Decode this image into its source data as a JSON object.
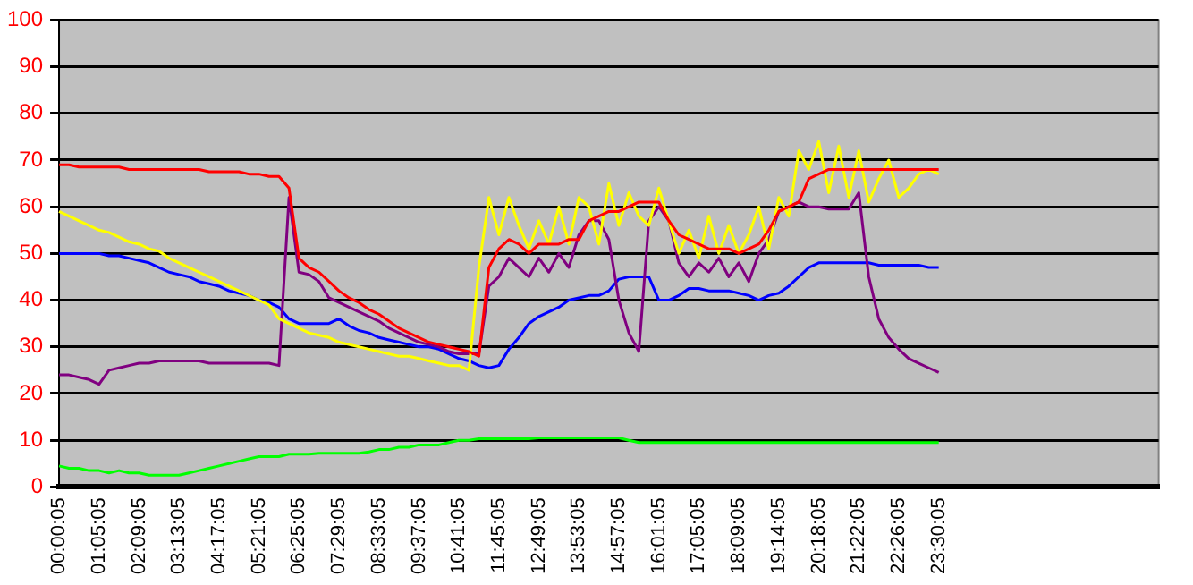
{
  "chart_data": {
    "type": "line",
    "categories": [
      "00:00:05",
      null,
      null,
      null,
      "01:05:05",
      null,
      null,
      null,
      "02:09:05",
      null,
      null,
      null,
      "03:13:05",
      null,
      null,
      null,
      "04:17:05",
      null,
      null,
      null,
      "05:21:05",
      null,
      null,
      null,
      "06:25:05",
      null,
      null,
      null,
      "07:29:05",
      null,
      null,
      null,
      "08:33:05",
      null,
      null,
      null,
      "09:37:05",
      null,
      null,
      null,
      "10:41:05",
      null,
      null,
      null,
      "11:45:05",
      null,
      null,
      null,
      "12:49:05",
      null,
      null,
      null,
      "13:53:05",
      null,
      null,
      null,
      "14:57:05",
      null,
      null,
      null,
      "16:01:05",
      null,
      null,
      null,
      "17:05:05",
      null,
      null,
      null,
      "18:09:05",
      null,
      null,
      null,
      "19:14:05",
      null,
      null,
      null,
      "20:18:05",
      null,
      null,
      null,
      "21:22:05",
      null,
      null,
      null,
      "22:26:05",
      null,
      null,
      null,
      "23:30:05",
      null,
      null,
      null,
      null,
      null,
      null,
      null,
      null,
      null,
      null,
      null,
      null,
      null,
      null,
      null,
      null,
      null,
      null,
      null,
      null,
      null,
      null
    ],
    "series": [
      {
        "color": "#ff0000",
        "values": [
          69,
          69,
          68.5,
          68.5,
          68.5,
          68.5,
          68.5,
          68,
          68,
          68,
          68,
          68,
          68,
          68,
          68,
          67.5,
          67.5,
          67.5,
          67.5,
          67,
          67,
          66.5,
          66.5,
          64,
          49,
          47,
          46,
          44,
          42,
          40.5,
          39.5,
          38,
          37,
          35.5,
          34,
          33,
          32,
          31,
          30.5,
          30,
          29.5,
          29,
          28,
          47,
          51,
          53,
          52,
          50,
          52,
          52,
          52,
          53,
          53,
          57,
          58,
          59,
          59,
          60,
          61,
          61,
          61,
          57,
          54,
          53,
          52,
          51,
          51,
          51,
          50,
          51,
          52,
          55,
          59,
          60,
          61,
          66,
          67,
          68,
          68,
          68,
          68,
          68,
          68,
          68,
          68,
          68,
          68,
          68,
          68,
          null,
          null,
          null,
          null,
          null,
          null,
          null,
          null,
          null,
          null,
          null,
          null,
          null,
          null,
          null,
          null,
          null,
          null,
          null,
          null,
          null,
          null
        ]
      },
      {
        "color": "#ffff00",
        "values": [
          59,
          58,
          57,
          56,
          55,
          54.5,
          53.5,
          52.5,
          52,
          51,
          50.5,
          49,
          48,
          47,
          46,
          45,
          44,
          43,
          42,
          41,
          40,
          39,
          36,
          35,
          34,
          33,
          32.5,
          32,
          31,
          30.5,
          30,
          29.5,
          29,
          28.5,
          28,
          28,
          27.5,
          27,
          26.5,
          26,
          26,
          25,
          47,
          62,
          54,
          62,
          56,
          51,
          57,
          52,
          60,
          52,
          62,
          60,
          52,
          65,
          56,
          63,
          58,
          56,
          64,
          57,
          50,
          55,
          49,
          58,
          50,
          56,
          50,
          54,
          60,
          51,
          62,
          58,
          72,
          68,
          74,
          63,
          73,
          62,
          72,
          61,
          66,
          70,
          62,
          64,
          67,
          68,
          67,
          null,
          null,
          null,
          null,
          null,
          null,
          null,
          null,
          null,
          null,
          null,
          null,
          null,
          null,
          null,
          null,
          null,
          null,
          null,
          null,
          null,
          null
        ]
      },
      {
        "color": "#800080",
        "values": [
          24,
          24,
          23.5,
          23,
          22,
          25,
          25.5,
          26,
          26.5,
          26.5,
          27,
          27,
          27,
          27,
          27,
          26.5,
          26.5,
          26.5,
          26.5,
          26.5,
          26.5,
          26.5,
          26,
          62,
          46,
          45.5,
          44,
          40.5,
          39.5,
          38.5,
          37.5,
          36.5,
          35.5,
          34,
          33,
          32,
          31,
          30.5,
          30,
          29,
          28.5,
          28.5,
          28.5,
          43,
          45,
          49,
          47,
          45,
          49,
          46,
          50,
          47,
          54,
          57,
          57,
          53,
          40,
          33,
          29,
          57,
          60,
          57,
          48,
          45,
          48,
          46,
          49,
          45,
          48,
          44,
          50,
          53,
          59,
          60,
          61,
          60,
          60,
          59.5,
          59.5,
          59.5,
          63,
          45,
          36,
          32,
          29.5,
          27.5,
          26.5,
          25.5,
          24.5,
          null,
          null,
          null,
          null,
          null,
          null,
          null,
          null,
          null,
          null,
          null,
          null,
          null,
          null,
          null,
          null,
          null,
          null,
          null,
          null,
          null,
          null
        ]
      },
      {
        "color": "#0000ff",
        "values": [
          50,
          50,
          50,
          50,
          50,
          49.5,
          49.5,
          49,
          48.5,
          48,
          47,
          46,
          45.5,
          45,
          44,
          43.5,
          43,
          42,
          41.5,
          41,
          40,
          39.5,
          38.5,
          36,
          35,
          35,
          35,
          35,
          36,
          34.5,
          33.5,
          33,
          32,
          31.5,
          31,
          30.5,
          30,
          30,
          29.5,
          28.5,
          27.5,
          27,
          26,
          25.5,
          26,
          29.5,
          32,
          35,
          36.5,
          37.5,
          38.5,
          40,
          40.5,
          41,
          41,
          42,
          44.5,
          45,
          45,
          45,
          40,
          40,
          41,
          42.5,
          42.5,
          42,
          42,
          42,
          41.5,
          41,
          40,
          41,
          41.5,
          43,
          45,
          47,
          48,
          48,
          48,
          48,
          48,
          48,
          47.5,
          47.5,
          47.5,
          47.5,
          47.5,
          47,
          47,
          null,
          null,
          null,
          null,
          null,
          null,
          null,
          null,
          null,
          null,
          null,
          null,
          null,
          null,
          null,
          null,
          null,
          null,
          null,
          null,
          null,
          null
        ]
      },
      {
        "color": "#00ff00",
        "values": [
          4.5,
          4,
          4,
          3.5,
          3.5,
          3,
          3.5,
          3,
          3,
          2.5,
          2.5,
          2.5,
          2.5,
          3,
          3.5,
          4,
          4.5,
          5,
          5.5,
          6,
          6.5,
          6.5,
          6.5,
          7,
          7,
          7,
          7.2,
          7.2,
          7.2,
          7.2,
          7.2,
          7.5,
          8,
          8,
          8.5,
          8.5,
          9,
          9,
          9,
          9.5,
          10,
          10,
          10.3,
          10.3,
          10.3,
          10.3,
          10.3,
          10.3,
          10.5,
          10.5,
          10.5,
          10.5,
          10.5,
          10.5,
          10.5,
          10.5,
          10.5,
          10,
          9.5,
          9.5,
          9.5,
          9.5,
          9.5,
          9.5,
          9.5,
          9.5,
          9.5,
          9.5,
          9.5,
          9.5,
          9.5,
          9.5,
          9.5,
          9.5,
          9.5,
          9.5,
          9.5,
          9.5,
          9.5,
          9.5,
          9.5,
          9.5,
          9.5,
          9.5,
          9.5,
          9.5,
          9.5,
          9.5,
          9.5,
          null,
          null,
          null,
          null,
          null,
          null,
          null,
          null,
          null,
          null,
          null,
          null,
          null,
          null,
          null,
          null,
          null,
          null,
          null,
          null,
          null,
          null
        ]
      }
    ],
    "ylim": [
      0,
      100
    ],
    "yticks": [
      0,
      10,
      20,
      30,
      40,
      50,
      60,
      70,
      80,
      90,
      100
    ],
    "grid": "y",
    "legend": false
  }
}
